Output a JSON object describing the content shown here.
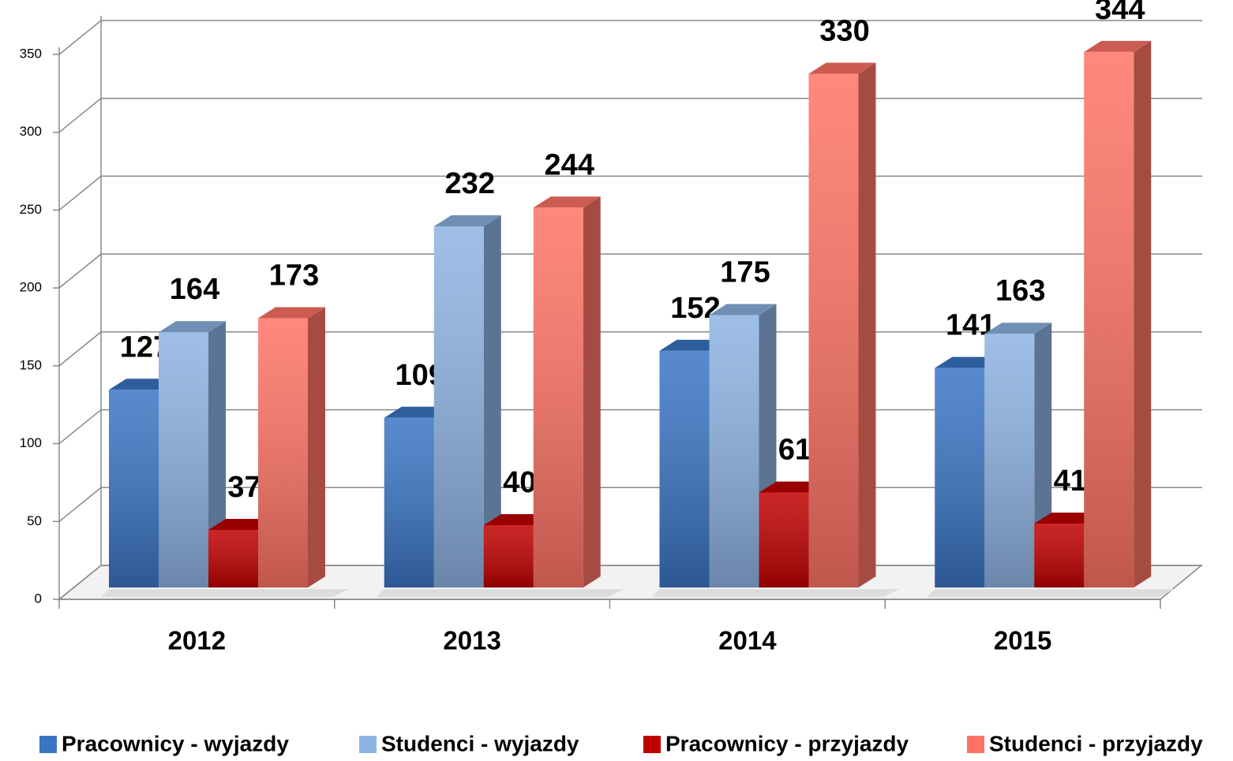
{
  "chart_data": {
    "type": "bar3d",
    "categories": [
      "2012",
      "2013",
      "2014",
      "2015"
    ],
    "series": [
      {
        "name": "Pracownicy - wyjazdy",
        "color": "#3a75c4",
        "values": [
          127,
          109,
          152,
          141
        ]
      },
      {
        "name": "Studenci - wyjazdy",
        "color": "#8db3e2",
        "values": [
          164,
          232,
          175,
          163
        ]
      },
      {
        "name": "Pracownicy - przyjazdy",
        "color": "#c00000",
        "values": [
          37,
          40,
          61,
          41
        ]
      },
      {
        "name": "Studenci - przyjazdy",
        "color": "#ff7366",
        "values": [
          173,
          244,
          330,
          344
        ]
      }
    ],
    "ylim": [
      0,
      350
    ],
    "yticks": [
      0,
      50,
      100,
      150,
      200,
      250,
      300,
      350
    ],
    "grid": true,
    "legend": "bottom"
  }
}
